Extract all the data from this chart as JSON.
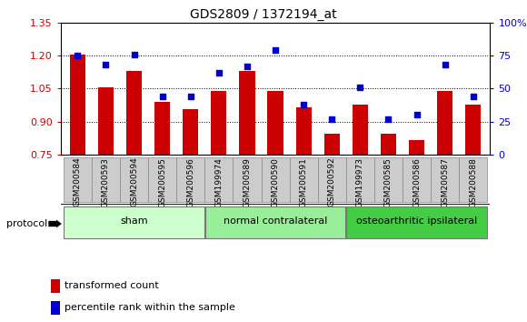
{
  "title": "GDS2809 / 1372194_at",
  "samples": [
    "GSM200584",
    "GSM200593",
    "GSM200594",
    "GSM200595",
    "GSM200596",
    "GSM199974",
    "GSM200589",
    "GSM200590",
    "GSM200591",
    "GSM200592",
    "GSM199973",
    "GSM200585",
    "GSM200586",
    "GSM200587",
    "GSM200588"
  ],
  "bar_values": [
    1.205,
    1.055,
    1.13,
    0.99,
    0.955,
    1.04,
    1.13,
    1.04,
    0.965,
    0.845,
    0.975,
    0.845,
    0.815,
    1.04,
    0.975
  ],
  "scatter_values": [
    75,
    68,
    76,
    44,
    44,
    62,
    67,
    79,
    38,
    27,
    51,
    27,
    30,
    68,
    44
  ],
  "ylim_left": [
    0.75,
    1.35
  ],
  "ylim_right": [
    0,
    100
  ],
  "yticks_left": [
    0.75,
    0.9,
    1.05,
    1.2,
    1.35
  ],
  "yticks_right": [
    0,
    25,
    50,
    75,
    100
  ],
  "ytick_labels_right": [
    "0",
    "25",
    "50",
    "75",
    "100%"
  ],
  "groups": [
    {
      "label": "sham",
      "start": 0,
      "end": 5,
      "color": "#ccffcc"
    },
    {
      "label": "normal contralateral",
      "start": 5,
      "end": 10,
      "color": "#99ee99"
    },
    {
      "label": "osteoarthritic ipsilateral",
      "start": 10,
      "end": 15,
      "color": "#44cc44"
    }
  ],
  "bar_color": "#cc0000",
  "scatter_color": "#0000cc",
  "bar_width": 0.55,
  "grid_color": "#000000",
  "bg_color": "#ffffff",
  "plot_bg_color": "#dddddd",
  "xtick_bg_color": "#cccccc",
  "legend_bar_label": "transformed count",
  "legend_scatter_label": "percentile rank within the sample",
  "protocol_label": "protocol",
  "left_axis_color": "#cc0000",
  "right_axis_color": "#0000cc"
}
